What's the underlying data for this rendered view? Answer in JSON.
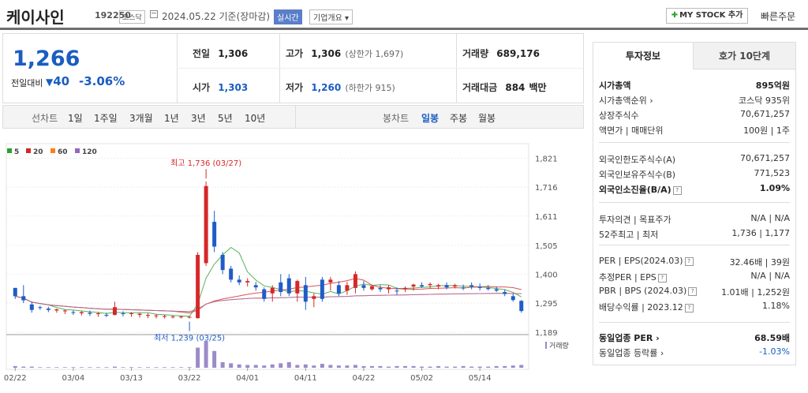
{
  "header": {
    "name": "케이사인",
    "code": "192250",
    "market": "코스닥",
    "date": "2024.05.22 기준(장마감)",
    "realtime": "실시간",
    "company_overview": "기업개요 ▾",
    "mystock": "MY STOCK 추가",
    "quick_order": "빠른주문"
  },
  "price": {
    "current": "1,266",
    "change_label": "전일대비",
    "change": "40",
    "change_pct": "-3.06%"
  },
  "stats": {
    "prev_label": "전일",
    "prev": "1,306",
    "high_label": "고가",
    "high": "1,306",
    "upper_limit": "(상한가 1,697)",
    "volume_label": "거래량",
    "volume": "689,176",
    "open_label": "시가",
    "open": "1,303",
    "low_label": "저가",
    "low": "1,260",
    "lower_limit": "(하한가 915)",
    "amount_label": "거래대금",
    "amount": "884",
    "amount_unit": "백만"
  },
  "periods": {
    "line_label": "선차트",
    "items": [
      "1일",
      "1주일",
      "3개월",
      "1년",
      "3년",
      "5년",
      "10년"
    ],
    "candle_label": "봉차트",
    "candle_items": [
      "일봉",
      "주봉",
      "월봉"
    ]
  },
  "chart_data": {
    "type": "candlestick",
    "legend": [
      "5",
      "20",
      "60",
      "120"
    ],
    "legend_colors": [
      "#2ca02c",
      "#d62728",
      "#ff7f0e",
      "#9467bd"
    ],
    "y_ticks": [
      "1,821",
      "1,716",
      "1,611",
      "1,505",
      "1,400",
      "1,295",
      "1,189"
    ],
    "x_ticks": [
      "02/22",
      "03/04",
      "03/13",
      "03/22",
      "04/01",
      "04/11",
      "04/22",
      "05/02",
      "05/14"
    ],
    "max_annotation": "최고 1,736 (03/27)",
    "min_annotation": "최저 1,239 (03/25)",
    "volume_label": "거래량",
    "ylim": [
      1189,
      1821
    ],
    "candles": [
      [
        1350,
        1350,
        1310,
        1320
      ],
      [
        1320,
        1360,
        1295,
        1305
      ],
      [
        1290,
        1300,
        1260,
        1270
      ],
      [
        1280,
        1285,
        1270,
        1278
      ],
      [
        1275,
        1282,
        1262,
        1270
      ],
      [
        1268,
        1275,
        1260,
        1272
      ],
      [
        1265,
        1272,
        1255,
        1268
      ],
      [
        1262,
        1268,
        1252,
        1260
      ],
      [
        1258,
        1265,
        1250,
        1262
      ],
      [
        1260,
        1268,
        1248,
        1256
      ],
      [
        1255,
        1262,
        1245,
        1258
      ],
      [
        1252,
        1260,
        1244,
        1250
      ],
      [
        1252,
        1300,
        1250,
        1280
      ],
      [
        1258,
        1265,
        1246,
        1255
      ],
      [
        1255,
        1262,
        1245,
        1258
      ],
      [
        1252,
        1260,
        1242,
        1256
      ],
      [
        1250,
        1258,
        1240,
        1252
      ],
      [
        1248,
        1255,
        1239,
        1250
      ],
      [
        1245,
        1252,
        1239,
        1248
      ],
      [
        1245,
        1250,
        1239,
        1246
      ],
      [
        1244,
        1248,
        1239,
        1246
      ],
      [
        1243,
        1247,
        1239,
        1245
      ],
      [
        1240,
        1480,
        1239,
        1470
      ],
      [
        1440,
        1736,
        1430,
        1720
      ],
      [
        1590,
        1630,
        1480,
        1500
      ],
      [
        1470,
        1480,
        1400,
        1415
      ],
      [
        1420,
        1430,
        1370,
        1380
      ],
      [
        1380,
        1395,
        1360,
        1370
      ],
      [
        1370,
        1385,
        1355,
        1375
      ],
      [
        1360,
        1372,
        1340,
        1352
      ],
      [
        1345,
        1352,
        1300,
        1310
      ],
      [
        1330,
        1360,
        1300,
        1350
      ],
      [
        1370,
        1400,
        1320,
        1335
      ],
      [
        1385,
        1400,
        1320,
        1330
      ],
      [
        1330,
        1380,
        1300,
        1375
      ],
      [
        1360,
        1390,
        1270,
        1300
      ],
      [
        1310,
        1330,
        1280,
        1320
      ],
      [
        1380,
        1390,
        1300,
        1310
      ],
      [
        1370,
        1390,
        1340,
        1380
      ],
      [
        1360,
        1375,
        1320,
        1330
      ],
      [
        1340,
        1372,
        1325,
        1360
      ],
      [
        1350,
        1410,
        1330,
        1400
      ],
      [
        1360,
        1375,
        1340,
        1350
      ],
      [
        1345,
        1360,
        1340,
        1356
      ],
      [
        1350,
        1360,
        1335,
        1345
      ],
      [
        1345,
        1360,
        1330,
        1352
      ],
      [
        1340,
        1352,
        1325,
        1338
      ],
      [
        1345,
        1355,
        1335,
        1350
      ],
      [
        1355,
        1365,
        1340,
        1362
      ],
      [
        1360,
        1370,
        1350,
        1355
      ],
      [
        1360,
        1370,
        1348,
        1364
      ],
      [
        1355,
        1365,
        1345,
        1360
      ],
      [
        1360,
        1370,
        1345,
        1352
      ],
      [
        1355,
        1365,
        1348,
        1360
      ],
      [
        1352,
        1362,
        1342,
        1348
      ],
      [
        1360,
        1370,
        1345,
        1355
      ],
      [
        1355,
        1366,
        1340,
        1350
      ],
      [
        1350,
        1360,
        1340,
        1346
      ],
      [
        1345,
        1355,
        1335,
        1340
      ],
      [
        1335,
        1345,
        1320,
        1328
      ],
      [
        1320,
        1330,
        1300,
        1306
      ],
      [
        1303,
        1306,
        1260,
        1266
      ]
    ],
    "volumes": [
      3,
      2,
      2,
      1,
      1,
      1,
      1,
      1,
      1,
      1,
      1,
      1,
      2,
      1,
      1,
      1,
      1,
      1,
      1,
      1,
      1,
      1,
      36,
      48,
      30,
      10,
      8,
      6,
      5,
      5,
      4,
      6,
      8,
      10,
      5,
      6,
      4,
      7,
      5,
      4,
      4,
      5,
      3,
      3,
      3,
      2,
      3,
      3,
      3,
      2,
      2,
      3,
      2,
      2,
      3,
      2,
      2,
      2,
      3,
      3,
      4,
      5
    ]
  },
  "info": {
    "tab_active": "투자정보",
    "tab_inactive": "호가 10단계",
    "rows1": [
      {
        "label": "시가총액",
        "value": "895억원",
        "bold": true
      },
      {
        "label": "시가총액순위 ›",
        "value": "코스닥 935위"
      },
      {
        "label": "상장주식수",
        "value": "70,671,257"
      },
      {
        "label": "액면가 | 매매단위",
        "value": "100원 | 1주"
      }
    ],
    "rows2": [
      {
        "label": "외국인한도주식수(A)",
        "value": "70,671,257"
      },
      {
        "label": "외국인보유주식수(B)",
        "value": "771,523"
      },
      {
        "label": "외국인소진율(B/A)",
        "value": "1.09%",
        "bold": true,
        "q": true
      }
    ],
    "rows3": [
      {
        "label": "투자의견 | 목표주가",
        "value": "N/A | N/A"
      },
      {
        "label": "52주최고 | 최저",
        "value": "1,736 | 1,177"
      }
    ],
    "rows4": [
      {
        "label": "PER | EPS(2024.03)",
        "value": "32.46배 | 39원",
        "q": true
      },
      {
        "label": "추정PER | EPS",
        "value": "N/A | N/A",
        "q": true
      },
      {
        "label": "PBR | BPS (2024.03)",
        "value": "1.01배 | 1,252원",
        "q": true
      },
      {
        "label": "배당수익률 | 2023.12",
        "value": "1.18%",
        "q": true
      }
    ],
    "rows5": [
      {
        "label": "동일업종 PER ›",
        "value": "68.59배",
        "bold": true
      },
      {
        "label": "동일업종 등락률 ›",
        "value": "-1.03%",
        "neg": true
      }
    ]
  }
}
